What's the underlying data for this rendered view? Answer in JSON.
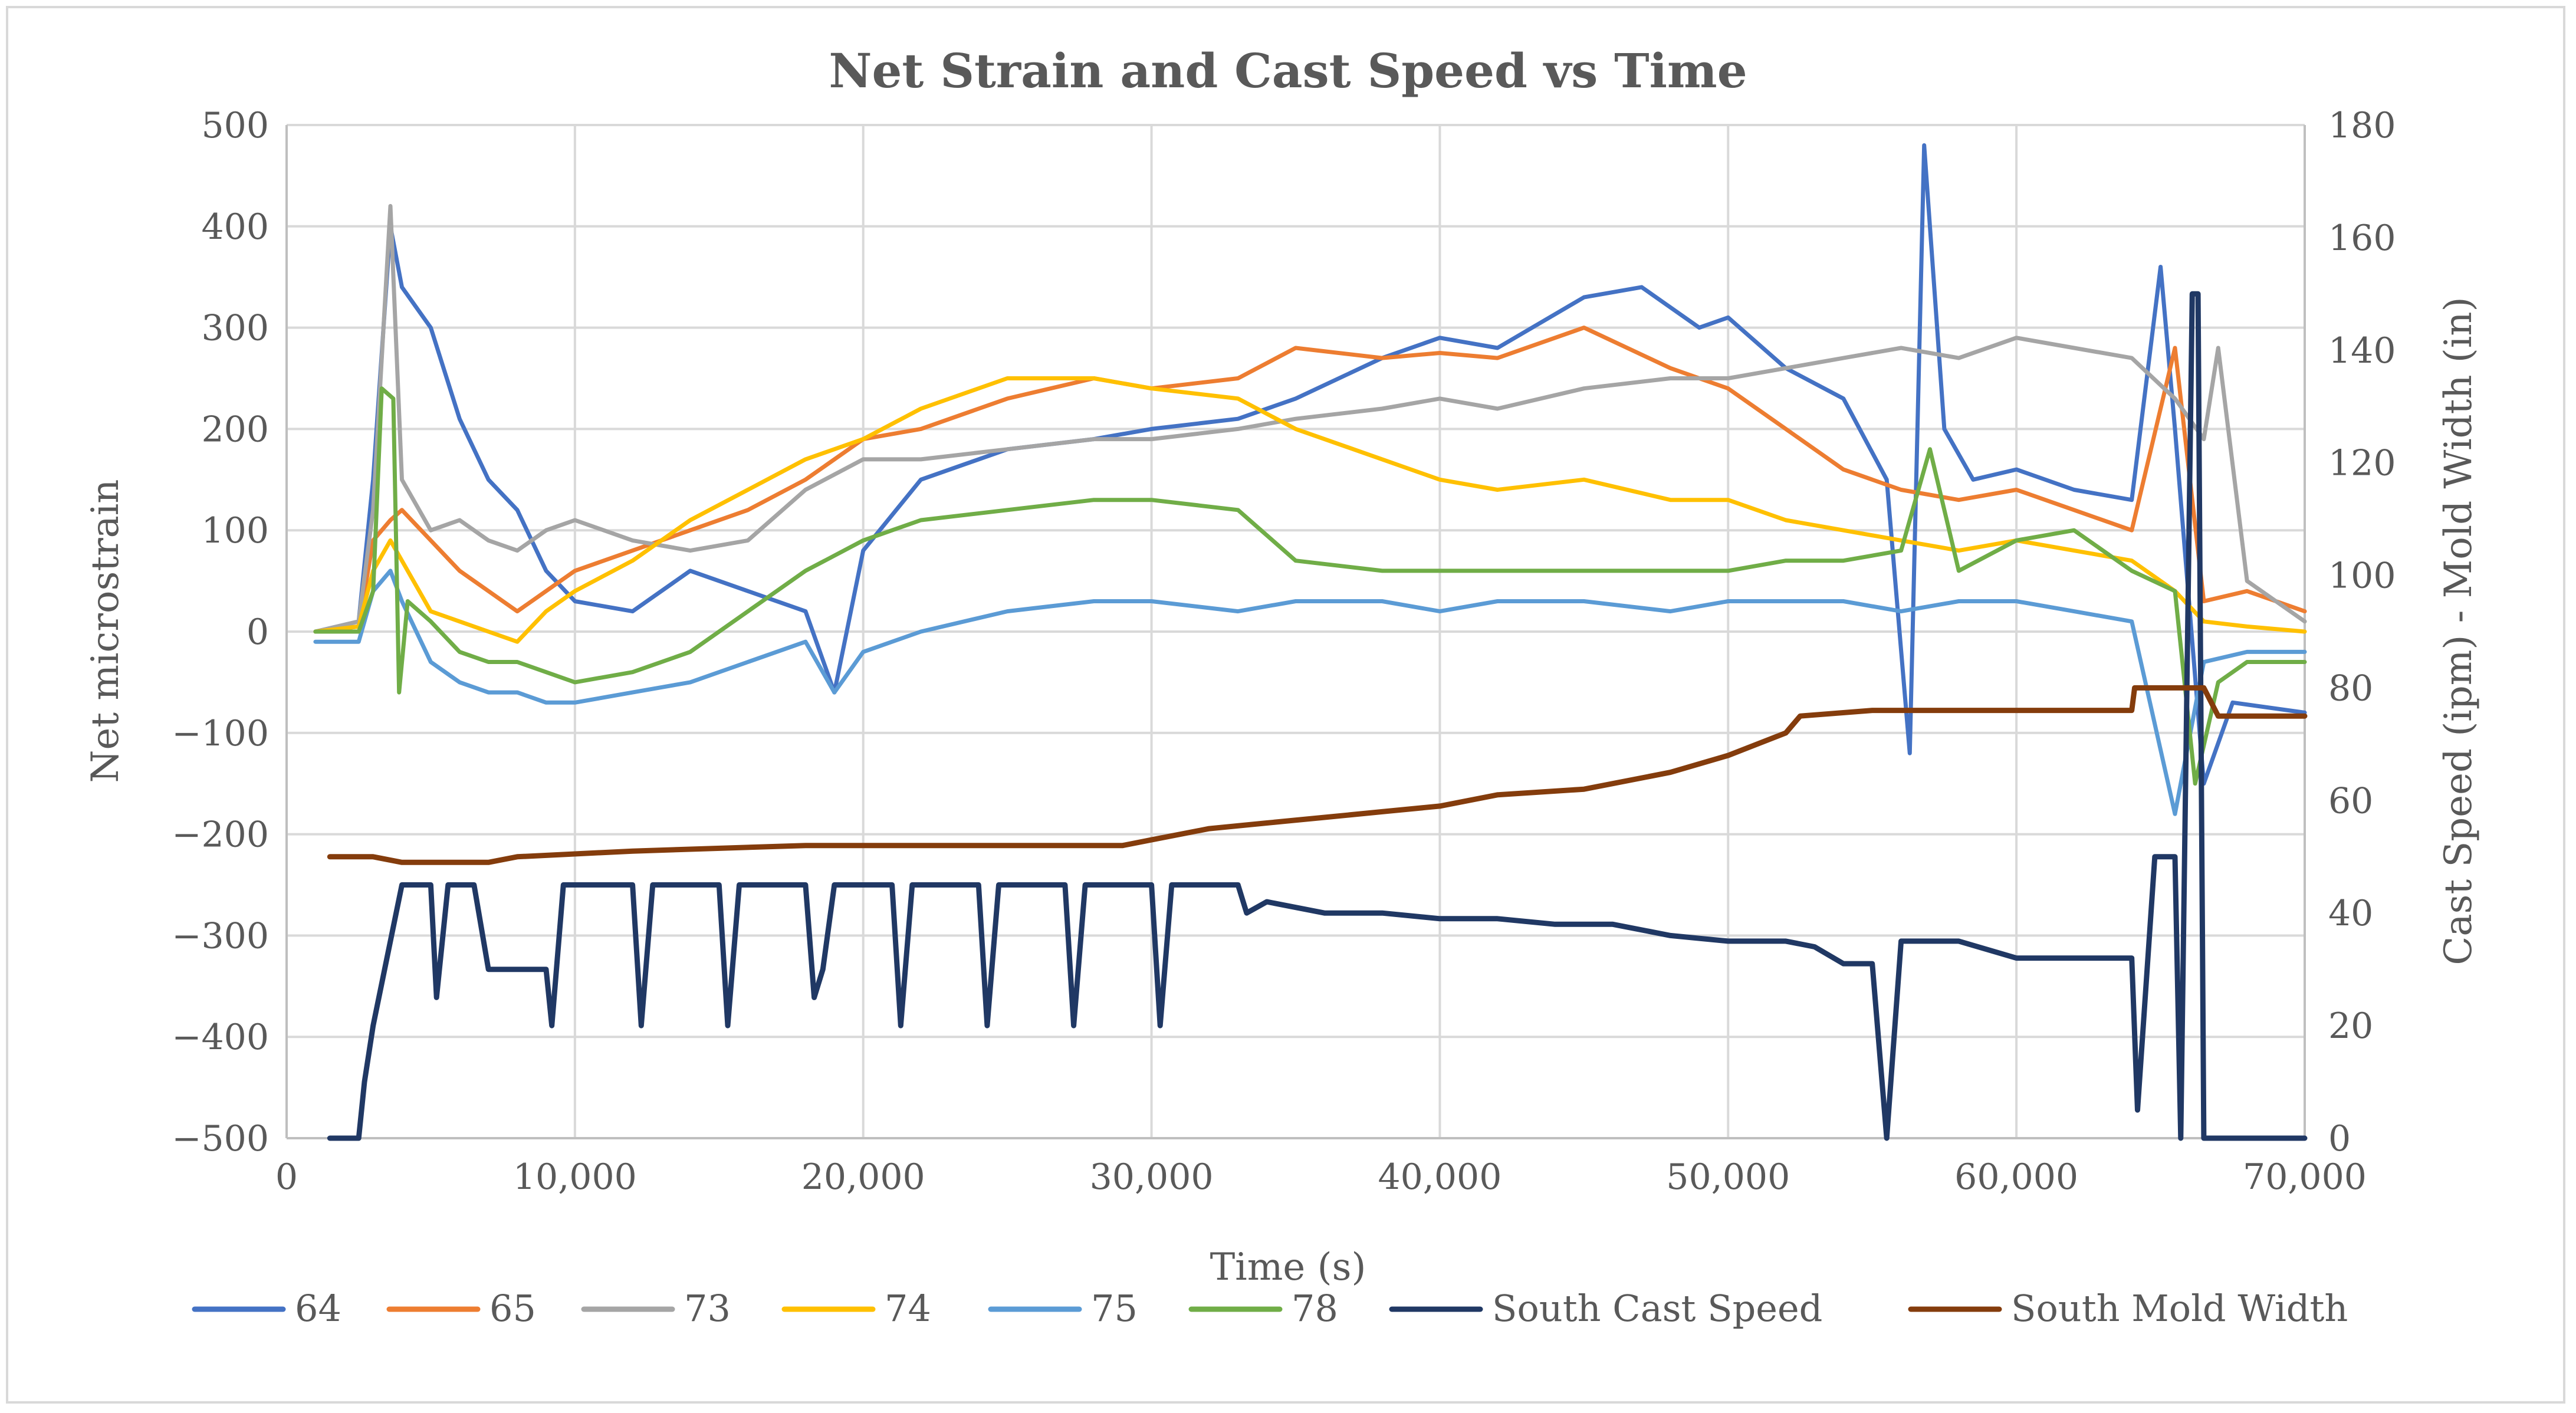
{
  "chart_data": {
    "type": "line",
    "title": "Net Strain and Cast Speed vs Time",
    "xlabel": "Time (s)",
    "ylabel": "Net microstrain",
    "y2label": "Cast Speed (ipm) - Mold Width (in)",
    "xlim": [
      0,
      70000
    ],
    "ylim": [
      -500,
      500
    ],
    "y2lim": [
      0,
      180
    ],
    "x_ticks": [
      0,
      10000,
      20000,
      30000,
      40000,
      50000,
      60000,
      70000
    ],
    "x_tick_labels": [
      "0",
      "10,000",
      "20,000",
      "30,000",
      "40,000",
      "50,000",
      "60,000",
      "70,000"
    ],
    "y_ticks": [
      -500,
      -400,
      -300,
      -200,
      -100,
      0,
      100,
      200,
      300,
      400,
      500
    ],
    "y_tick_labels": [
      "−500",
      "−400",
      "−300",
      "−200",
      "−100",
      "0",
      "100",
      "200",
      "300",
      "400",
      "500"
    ],
    "y2_ticks": [
      0,
      20,
      40,
      60,
      80,
      100,
      120,
      140,
      160,
      180
    ],
    "y2_tick_labels": [
      "0",
      "20",
      "40",
      "60",
      "80",
      "100",
      "120",
      "140",
      "160",
      "180"
    ],
    "grid": true,
    "legend_position": "bottom",
    "series": [
      {
        "name": "64",
        "axis": "left",
        "color": "#4472c4",
        "x": [
          1000,
          2500,
          3000,
          3600,
          4000,
          5000,
          6000,
          7000,
          8000,
          9000,
          10000,
          12000,
          14000,
          16000,
          18000,
          19000,
          20000,
          22000,
          25000,
          28000,
          30000,
          33000,
          35000,
          38000,
          40000,
          42000,
          45000,
          47000,
          49000,
          50000,
          52000,
          54000,
          55500,
          56300,
          56800,
          57500,
          58500,
          60000,
          62000,
          64000,
          65000,
          65500,
          66500,
          67500,
          70000
        ],
        "values": [
          0,
          10,
          150,
          400,
          340,
          300,
          210,
          150,
          120,
          60,
          30,
          20,
          60,
          40,
          20,
          -60,
          80,
          150,
          180,
          190,
          200,
          210,
          230,
          270,
          290,
          280,
          330,
          340,
          300,
          310,
          260,
          230,
          150,
          -120,
          480,
          200,
          150,
          160,
          140,
          130,
          360,
          200,
          -150,
          -70,
          -80
        ]
      },
      {
        "name": "65",
        "axis": "left",
        "color": "#ed7d31",
        "x": [
          1000,
          2500,
          3000,
          3600,
          4000,
          5000,
          6000,
          7000,
          8000,
          9000,
          10000,
          12000,
          14000,
          16000,
          18000,
          20000,
          22000,
          25000,
          28000,
          30000,
          33000,
          35000,
          38000,
          40000,
          42000,
          45000,
          48000,
          50000,
          52000,
          54000,
          56000,
          58000,
          60000,
          62000,
          64000,
          65500,
          66500,
          68000,
          70000
        ],
        "values": [
          0,
          5,
          90,
          110,
          120,
          90,
          60,
          40,
          20,
          40,
          60,
          80,
          100,
          120,
          150,
          190,
          200,
          230,
          250,
          240,
          250,
          280,
          270,
          275,
          270,
          300,
          260,
          240,
          200,
          160,
          140,
          130,
          140,
          120,
          100,
          280,
          30,
          40,
          20
        ]
      },
      {
        "name": "73",
        "axis": "left",
        "color": "#a5a5a5",
        "x": [
          1000,
          2500,
          3000,
          3600,
          4000,
          5000,
          6000,
          7000,
          8000,
          9000,
          10000,
          12000,
          14000,
          16000,
          18000,
          20000,
          22000,
          25000,
          28000,
          30000,
          33000,
          35000,
          38000,
          40000,
          42000,
          45000,
          48000,
          50000,
          52000,
          54000,
          56000,
          58000,
          60000,
          62000,
          64000,
          65500,
          66500,
          67000,
          68000,
          70000
        ],
        "values": [
          0,
          10,
          120,
          420,
          150,
          100,
          110,
          90,
          80,
          100,
          110,
          90,
          80,
          90,
          140,
          170,
          170,
          180,
          190,
          190,
          200,
          210,
          220,
          230,
          220,
          240,
          250,
          250,
          260,
          270,
          280,
          270,
          290,
          280,
          270,
          230,
          190,
          280,
          50,
          10
        ]
      },
      {
        "name": "74",
        "axis": "left",
        "color": "#ffc000",
        "x": [
          1000,
          2500,
          3000,
          3600,
          4000,
          5000,
          6000,
          7000,
          8000,
          9000,
          10000,
          12000,
          14000,
          16000,
          18000,
          20000,
          22000,
          25000,
          28000,
          30000,
          33000,
          35000,
          38000,
          40000,
          42000,
          45000,
          48000,
          50000,
          52000,
          54000,
          56000,
          58000,
          60000,
          62000,
          64000,
          65500,
          66500,
          68000,
          70000
        ],
        "values": [
          0,
          5,
          60,
          90,
          70,
          20,
          10,
          0,
          -10,
          20,
          40,
          70,
          110,
          140,
          170,
          190,
          220,
          250,
          250,
          240,
          230,
          200,
          170,
          150,
          140,
          150,
          130,
          130,
          110,
          100,
          90,
          80,
          90,
          80,
          70,
          40,
          10,
          5,
          0
        ]
      },
      {
        "name": "75",
        "axis": "left",
        "color": "#5b9bd5",
        "x": [
          1000,
          2500,
          3000,
          3600,
          4000,
          5000,
          6000,
          7000,
          8000,
          9000,
          10000,
          12000,
          14000,
          16000,
          18000,
          19000,
          20000,
          22000,
          25000,
          28000,
          30000,
          33000,
          35000,
          38000,
          40000,
          42000,
          45000,
          48000,
          50000,
          52000,
          54000,
          56000,
          58000,
          60000,
          62000,
          64000,
          65500,
          66500,
          68000,
          70000
        ],
        "values": [
          -10,
          -10,
          40,
          60,
          30,
          -30,
          -50,
          -60,
          -60,
          -70,
          -70,
          -60,
          -50,
          -30,
          -10,
          -60,
          -20,
          0,
          20,
          30,
          30,
          20,
          30,
          30,
          20,
          30,
          30,
          20,
          30,
          30,
          30,
          20,
          30,
          30,
          20,
          10,
          -180,
          -30,
          -20,
          -20
        ]
      },
      {
        "name": "78",
        "axis": "left",
        "color": "#70ad47",
        "x": [
          1000,
          2500,
          3000,
          3300,
          3700,
          3900,
          4200,
          5000,
          6000,
          7000,
          8000,
          9000,
          10000,
          12000,
          14000,
          16000,
          18000,
          20000,
          22000,
          25000,
          28000,
          30000,
          33000,
          35000,
          38000,
          40000,
          42000,
          45000,
          48000,
          50000,
          52000,
          54000,
          56000,
          57000,
          58000,
          60000,
          62000,
          64000,
          65500,
          66200,
          67000,
          68000,
          70000
        ],
        "values": [
          0,
          0,
          40,
          240,
          230,
          -60,
          30,
          10,
          -20,
          -30,
          -30,
          -40,
          -50,
          -40,
          -20,
          20,
          60,
          90,
          110,
          120,
          130,
          130,
          120,
          70,
          60,
          60,
          60,
          60,
          60,
          60,
          70,
          70,
          80,
          180,
          60,
          90,
          100,
          60,
          40,
          -150,
          -50,
          -30,
          -30
        ]
      },
      {
        "name": "South Cast Speed",
        "axis": "right",
        "color": "#203864",
        "x": [
          1500,
          2500,
          2700,
          3000,
          3400,
          4000,
          5000,
          5200,
          5600,
          6500,
          7000,
          9000,
          9200,
          9600,
          12000,
          12300,
          12700,
          15000,
          15300,
          15700,
          18000,
          18300,
          18600,
          19000,
          21000,
          21300,
          21700,
          24000,
          24300,
          24700,
          27000,
          27300,
          27700,
          30000,
          30300,
          30700,
          33000,
          33300,
          34000,
          36000,
          38000,
          40000,
          42000,
          44000,
          46000,
          48000,
          50000,
          52000,
          53000,
          54000,
          55000,
          55500,
          56000,
          58000,
          60000,
          62000,
          64000,
          64200,
          64800,
          65500,
          65700,
          66100,
          66300,
          66500,
          66800,
          70000
        ],
        "values": [
          0,
          0,
          10,
          20,
          30,
          45,
          45,
          25,
          45,
          45,
          30,
          30,
          20,
          45,
          45,
          20,
          45,
          45,
          20,
          45,
          45,
          25,
          30,
          45,
          45,
          20,
          45,
          45,
          20,
          45,
          45,
          20,
          45,
          45,
          20,
          45,
          45,
          40,
          42,
          40,
          40,
          39,
          39,
          38,
          38,
          36,
          35,
          35,
          34,
          31,
          31,
          0,
          35,
          35,
          32,
          32,
          32,
          5,
          50,
          50,
          0,
          150,
          150,
          0,
          0,
          0
        ]
      },
      {
        "name": "South Mold Width",
        "axis": "right",
        "color": "#843c0c",
        "x": [
          1500,
          3000,
          4000,
          7000,
          8000,
          12000,
          18000,
          29000,
          30000,
          32000,
          34000,
          36000,
          38000,
          40000,
          42000,
          45000,
          48000,
          50000,
          52000,
          52500,
          55000,
          60000,
          64000,
          64100,
          66500,
          67000,
          70000
        ],
        "values": [
          50,
          50,
          49,
          49,
          50,
          51,
          52,
          52,
          53,
          55,
          56,
          57,
          58,
          59,
          61,
          62,
          65,
          68,
          72,
          75,
          76,
          76,
          76,
          80,
          80,
          75,
          75
        ]
      }
    ]
  }
}
